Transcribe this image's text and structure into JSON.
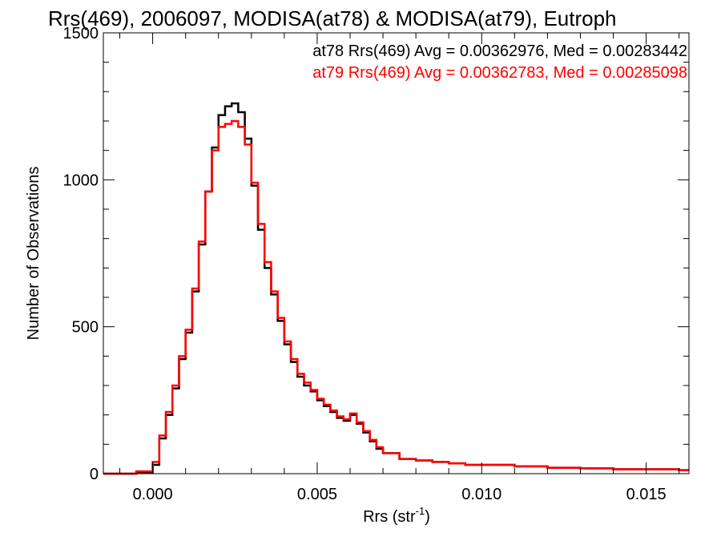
{
  "chart_data": {
    "type": "line",
    "title": "Rrs(469), 2006097, MODISA(at78) & MODISA(at79), Eutroph",
    "xlabel_base": "Rrs (str",
    "xlabel_exp": "-1",
    "xlabel_close": ")",
    "ylabel": "Number of Observations",
    "xlim": [
      -0.0015,
      0.0163
    ],
    "ylim": [
      0,
      1500
    ],
    "x_ticks": [
      {
        "value": 0.0,
        "label": "0.000"
      },
      {
        "value": 0.005,
        "label": "0.005"
      },
      {
        "value": 0.01,
        "label": "0.010"
      },
      {
        "value": 0.015,
        "label": "0.015"
      }
    ],
    "y_ticks": [
      {
        "value": 0,
        "label": "0"
      },
      {
        "value": 500,
        "label": "500"
      },
      {
        "value": 1000,
        "label": "1000"
      },
      {
        "value": 1500,
        "label": "1500"
      }
    ],
    "legend_position": "top-right",
    "legend": [
      {
        "text": "at78 Rrs(469) Avg = 0.00362976, Med = 0.00283442",
        "color": "#000000"
      },
      {
        "text": "at79 Rrs(469) Avg = 0.00362783, Med = 0.00285098",
        "color": "#ff0000"
      }
    ],
    "series": [
      {
        "color": "#000000",
        "x": [
          -0.0015,
          -0.001,
          -0.0005,
          0.0,
          0.0002,
          0.0004,
          0.0006,
          0.0008,
          0.001,
          0.0012,
          0.0014,
          0.0016,
          0.0018,
          0.002,
          0.0022,
          0.0024,
          0.0026,
          0.0028,
          0.003,
          0.0032,
          0.0034,
          0.0036,
          0.0038,
          0.004,
          0.0042,
          0.0044,
          0.0046,
          0.0048,
          0.005,
          0.0052,
          0.0054,
          0.0056,
          0.0058,
          0.006,
          0.0062,
          0.0064,
          0.0066,
          0.0068,
          0.007,
          0.0075,
          0.008,
          0.0085,
          0.009,
          0.0095,
          0.01,
          0.011,
          0.012,
          0.013,
          0.014,
          0.015,
          0.016,
          0.0163
        ],
        "y": [
          0,
          0,
          5,
          30,
          120,
          200,
          290,
          390,
          480,
          620,
          780,
          960,
          1110,
          1220,
          1250,
          1260,
          1230,
          1140,
          980,
          830,
          700,
          610,
          520,
          440,
          380,
          330,
          300,
          280,
          250,
          230,
          210,
          190,
          180,
          200,
          170,
          140,
          110,
          85,
          70,
          50,
          45,
          40,
          35,
          30,
          30,
          25,
          20,
          18,
          15,
          15,
          12,
          12
        ]
      },
      {
        "color": "#ff0000",
        "x": [
          -0.0015,
          -0.001,
          -0.0005,
          0.0,
          0.0002,
          0.0004,
          0.0006,
          0.0008,
          0.001,
          0.0012,
          0.0014,
          0.0016,
          0.0018,
          0.002,
          0.0022,
          0.0024,
          0.0026,
          0.0028,
          0.003,
          0.0032,
          0.0034,
          0.0036,
          0.0038,
          0.004,
          0.0042,
          0.0044,
          0.0046,
          0.0048,
          0.005,
          0.0052,
          0.0054,
          0.0056,
          0.0058,
          0.006,
          0.0062,
          0.0064,
          0.0066,
          0.0068,
          0.007,
          0.0075,
          0.008,
          0.0085,
          0.009,
          0.0095,
          0.01,
          0.011,
          0.012,
          0.013,
          0.014,
          0.015,
          0.016,
          0.0163
        ],
        "y": [
          0,
          0,
          8,
          40,
          130,
          210,
          300,
          400,
          490,
          630,
          790,
          960,
          1100,
          1180,
          1190,
          1200,
          1180,
          1120,
          990,
          850,
          720,
          620,
          530,
          450,
          390,
          340,
          310,
          285,
          255,
          235,
          215,
          195,
          185,
          205,
          175,
          145,
          115,
          90,
          70,
          50,
          45,
          40,
          35,
          30,
          30,
          25,
          20,
          18,
          15,
          15,
          12,
          12
        ]
      }
    ]
  }
}
